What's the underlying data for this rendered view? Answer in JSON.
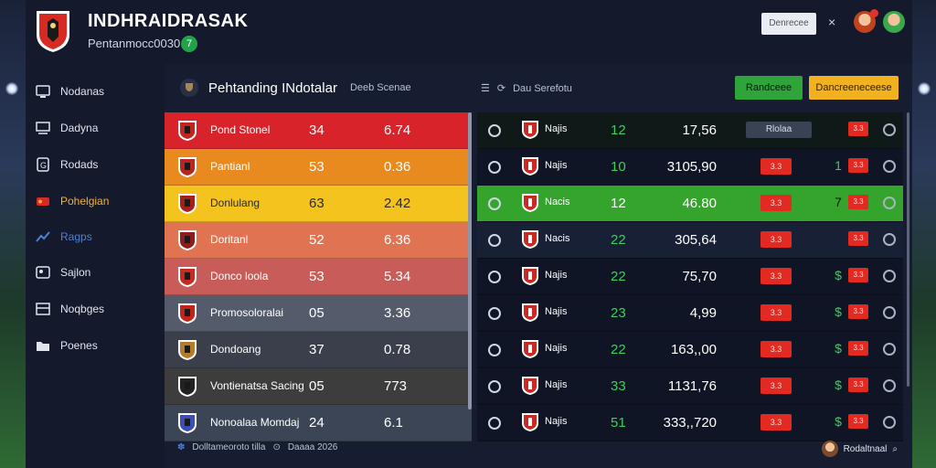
{
  "header": {
    "title": "INDHRAIDRASAK",
    "subtitle": "Pentanmocc0030",
    "subtitle_badge": "7",
    "button_label": "Denrecee",
    "close_glyph": "×"
  },
  "sidebar": {
    "items": [
      {
        "label": "Nodanas",
        "icon": "display-icon"
      },
      {
        "label": "Dadyna",
        "icon": "monitor-icon"
      },
      {
        "label": "Rodads",
        "icon": "gamepad-icon"
      },
      {
        "label": "Pohelgian",
        "icon": "ticket-icon",
        "active": true
      },
      {
        "label": "Ragps",
        "icon": "chart-icon"
      },
      {
        "label": "Sajlon",
        "icon": "gallery-icon"
      },
      {
        "label": "Noqbges",
        "icon": "grid-icon"
      },
      {
        "label": "Poenes",
        "icon": "folder-icon"
      }
    ]
  },
  "main": {
    "title": "Pehtanding INdotalar",
    "title_sub": "Deeb Scenae",
    "filter_label": "Dau Serefotu",
    "btn_green": "Randceee",
    "btn_yellow": "Dancreeneceese"
  },
  "left_table": {
    "rows": [
      {
        "name": "Pond Stonel",
        "v1": "34",
        "v2": "6.74",
        "color": "#d8232a",
        "crest": "#c0261e"
      },
      {
        "name": "Pantianl",
        "v1": "53",
        "v2": "0.36",
        "color": "#e88a1e",
        "crest": "#b52721"
      },
      {
        "name": "Donlulang",
        "v1": "63",
        "v2": "2.42",
        "color": "#f4c31e",
        "crest": "#a52019",
        "text_dark": true
      },
      {
        "name": "Doritanl",
        "v1": "52",
        "v2": "6.36",
        "color": "#e07452",
        "crest": "#8e1c1a"
      },
      {
        "name": "Donco loola",
        "v1": "53",
        "v2": "5.34",
        "color": "#c75c59",
        "crest": "#c62a22"
      },
      {
        "name": "Promosoloralai",
        "v1": "05",
        "v2": "3.36",
        "color": "#545b6a",
        "crest": "#c2241c"
      },
      {
        "name": "Dondoang",
        "v1": "37",
        "v2": "0.78",
        "color": "#3a3f4b",
        "crest": "#b47c2a"
      },
      {
        "name": "Vontienatsa Sacing",
        "v1": "05",
        "v2": "773",
        "color": "#3d3d3d",
        "crest": "#222222"
      },
      {
        "name": "Nonoalaa Momdaj",
        "v1": "24",
        "v2": "6.1",
        "color": "#3c4556",
        "crest": "#3b4fb0"
      }
    ]
  },
  "right_table": {
    "rows": [
      {
        "name": "Najis",
        "num": "12",
        "val": "17,56",
        "pill": "Rlolaa",
        "extra": "",
        "chip2": "3.3",
        "bg": "#0f1a18"
      },
      {
        "name": "Najis",
        "num": "10",
        "val": "3105,90",
        "chip": "3.3",
        "extra": "1",
        "chip2": "3.3",
        "bg": "#0f1524"
      },
      {
        "name": "Nacis",
        "num": "12",
        "val": "46.80",
        "chip": "3.3",
        "extra": "7",
        "chip2": "3.3",
        "bg": "#34a42c",
        "highlight": true
      },
      {
        "name": "Nacis",
        "num": "22",
        "val": "305,64",
        "chip": "3.3",
        "extra": "",
        "chip2": "3.3",
        "bg": "#182036"
      },
      {
        "name": "Najis",
        "num": "22",
        "val": "75,70",
        "chip": "3.3",
        "extra": "$",
        "chip2": "3.3",
        "bg": "#0f1524"
      },
      {
        "name": "Najis",
        "num": "23",
        "val": "4,99",
        "chip": "3.3",
        "extra": "$",
        "chip2": "3.3",
        "bg": "#0f1524"
      },
      {
        "name": "Najis",
        "num": "22",
        "val": "163,,00",
        "chip": "3.3",
        "extra": "$",
        "chip2": "3.3",
        "bg": "#0f1524"
      },
      {
        "name": "Najis",
        "num": "33",
        "val": "1131,76",
        "chip": "3.3",
        "extra": "$",
        "chip2": "3.3",
        "bg": "#0f1524"
      },
      {
        "name": "Najis",
        "num": "51",
        "val": "333,,720",
        "chip": "3.3",
        "extra": "$",
        "chip2": "3.3",
        "bg": "#0f1524"
      }
    ]
  },
  "footer": {
    "left_text": "Dolltameoroto tilla",
    "left_text2": "Daaaa 2026",
    "right_text": "Rodaltnaal"
  },
  "colors": {
    "accent_green": "#2fa43a",
    "accent_yellow": "#f2b21f",
    "chip_red": "#e32a22"
  }
}
